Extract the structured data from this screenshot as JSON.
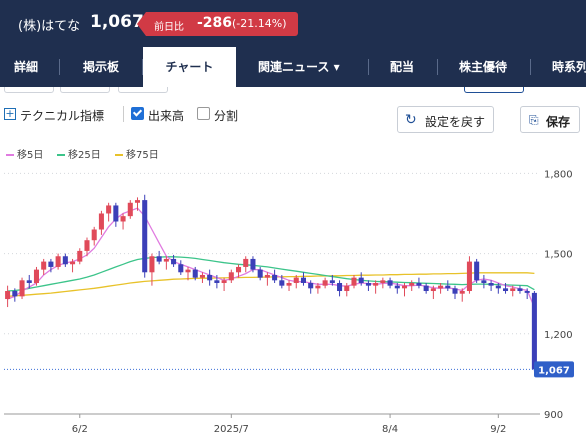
{
  "header": {
    "stock_name": "(株)はてな",
    "price": "1,067",
    "change_label": "前日比",
    "change_value": "-286",
    "change_pct": "(-21.14%)",
    "change_color": "#d13a45",
    "bg_color": "#1f2f4f"
  },
  "tabs": [
    "詳細",
    "掲示板",
    "チャート",
    "関連ニュース ▾",
    "配当",
    "株主優待",
    "時系列"
  ],
  "active_tab": "チャート",
  "toolbar": {
    "technical_label": "テクニカル指標",
    "volume_label": "出来高",
    "volume_checked": true,
    "split_label": "分割",
    "split_checked": false,
    "reset_label": "設定を戻す",
    "save_label": "保存",
    "reset_icon": "refresh-icon",
    "save_icon": "paperclip-icon"
  },
  "legend": [
    {
      "label": "移5日",
      "color": "#e07be0"
    },
    {
      "label": "移25日",
      "color": "#3cc48a"
    },
    {
      "label": "移75日",
      "color": "#e8c22a"
    }
  ],
  "chart_data": {
    "type": "candlestick",
    "title": "",
    "x_ticks": [
      "6/2",
      "2025/7",
      "8/4",
      "9/2"
    ],
    "y_ticks": [
      1800,
      1500,
      1200,
      900
    ],
    "y_tick_labels": [
      "1,800",
      "1,500",
      "1,200",
      "900"
    ],
    "ylim": [
      900,
      1850
    ],
    "current_price": 1067,
    "current_price_label": "1,067",
    "up_color": "#e04a5a",
    "down_color": "#3b3fb8",
    "candles": [
      [
        1330,
        1380,
        1300,
        1360
      ],
      [
        1360,
        1370,
        1320,
        1340
      ],
      [
        1340,
        1410,
        1330,
        1400
      ],
      [
        1400,
        1420,
        1370,
        1390
      ],
      [
        1390,
        1450,
        1380,
        1440
      ],
      [
        1440,
        1480,
        1420,
        1470
      ],
      [
        1470,
        1480,
        1430,
        1450
      ],
      [
        1450,
        1500,
        1440,
        1490
      ],
      [
        1490,
        1500,
        1450,
        1460
      ],
      [
        1460,
        1480,
        1430,
        1470
      ],
      [
        1470,
        1520,
        1460,
        1510
      ],
      [
        1510,
        1560,
        1490,
        1550
      ],
      [
        1550,
        1600,
        1530,
        1590
      ],
      [
        1590,
        1660,
        1570,
        1650
      ],
      [
        1650,
        1690,
        1620,
        1680
      ],
      [
        1680,
        1690,
        1600,
        1620
      ],
      [
        1620,
        1650,
        1590,
        1640
      ],
      [
        1640,
        1700,
        1630,
        1690
      ],
      [
        1690,
        1710,
        1660,
        1700
      ],
      [
        1700,
        1720,
        1410,
        1430
      ],
      [
        1430,
        1500,
        1380,
        1490
      ],
      [
        1490,
        1510,
        1460,
        1470
      ],
      [
        1470,
        1490,
        1440,
        1480
      ],
      [
        1480,
        1495,
        1450,
        1460
      ],
      [
        1460,
        1475,
        1420,
        1430
      ],
      [
        1430,
        1450,
        1400,
        1440
      ],
      [
        1440,
        1450,
        1400,
        1410
      ],
      [
        1410,
        1430,
        1390,
        1420
      ],
      [
        1420,
        1440,
        1380,
        1400
      ],
      [
        1400,
        1420,
        1370,
        1390
      ],
      [
        1390,
        1410,
        1360,
        1400
      ],
      [
        1400,
        1440,
        1390,
        1430
      ],
      [
        1430,
        1460,
        1410,
        1450
      ],
      [
        1450,
        1490,
        1430,
        1480
      ],
      [
        1480,
        1490,
        1430,
        1440
      ],
      [
        1440,
        1450,
        1400,
        1410
      ],
      [
        1410,
        1430,
        1380,
        1420
      ],
      [
        1420,
        1440,
        1390,
        1400
      ],
      [
        1400,
        1420,
        1370,
        1380
      ],
      [
        1380,
        1400,
        1360,
        1390
      ],
      [
        1390,
        1420,
        1370,
        1410
      ],
      [
        1410,
        1430,
        1380,
        1390
      ],
      [
        1390,
        1400,
        1350,
        1370
      ],
      [
        1370,
        1390,
        1350,
        1380
      ],
      [
        1380,
        1410,
        1370,
        1400
      ],
      [
        1400,
        1420,
        1380,
        1390
      ],
      [
        1390,
        1400,
        1340,
        1360
      ],
      [
        1360,
        1390,
        1340,
        1380
      ],
      [
        1380,
        1420,
        1370,
        1410
      ],
      [
        1410,
        1430,
        1380,
        1390
      ],
      [
        1390,
        1400,
        1360,
        1380
      ],
      [
        1380,
        1400,
        1350,
        1390
      ],
      [
        1390,
        1410,
        1370,
        1400
      ],
      [
        1400,
        1410,
        1370,
        1380
      ],
      [
        1380,
        1390,
        1350,
        1370
      ],
      [
        1370,
        1390,
        1340,
        1380
      ],
      [
        1380,
        1400,
        1360,
        1390
      ],
      [
        1390,
        1410,
        1370,
        1380
      ],
      [
        1380,
        1390,
        1350,
        1360
      ],
      [
        1360,
        1380,
        1330,
        1370
      ],
      [
        1370,
        1390,
        1350,
        1380
      ],
      [
        1380,
        1400,
        1360,
        1370
      ],
      [
        1370,
        1380,
        1330,
        1350
      ],
      [
        1350,
        1370,
        1320,
        1360
      ],
      [
        1360,
        1490,
        1350,
        1470
      ],
      [
        1470,
        1480,
        1390,
        1400
      ],
      [
        1400,
        1420,
        1370,
        1390
      ],
      [
        1390,
        1400,
        1360,
        1380
      ],
      [
        1380,
        1390,
        1350,
        1370
      ],
      [
        1370,
        1390,
        1350,
        1360
      ],
      [
        1360,
        1380,
        1340,
        1370
      ],
      [
        1370,
        1380,
        1350,
        1360
      ],
      [
        1360,
        1370,
        1330,
        1353
      ],
      [
        1353,
        1360,
        1060,
        1067
      ]
    ],
    "ma5": [
      1330,
      1340,
      1360,
      1375,
      1390,
      1420,
      1440,
      1455,
      1465,
      1470,
      1480,
      1495,
      1520,
      1560,
      1600,
      1630,
      1650,
      1660,
      1670,
      1640,
      1590,
      1540,
      1490,
      1470,
      1460,
      1450,
      1440,
      1430,
      1420,
      1410,
      1400,
      1405,
      1415,
      1425,
      1440,
      1440,
      1430,
      1420,
      1410,
      1400,
      1395,
      1395,
      1390,
      1385,
      1385,
      1385,
      1380,
      1378,
      1385,
      1390,
      1388,
      1385,
      1388,
      1390,
      1385,
      1380,
      1380,
      1382,
      1378,
      1372,
      1370,
      1372,
      1368,
      1362,
      1385,
      1400,
      1405,
      1400,
      1390,
      1380,
      1375,
      1368,
      1362,
      1300
    ],
    "ma25": [
      1360,
      1362,
      1365,
      1370,
      1375,
      1380,
      1385,
      1390,
      1395,
      1400,
      1405,
      1412,
      1420,
      1430,
      1440,
      1450,
      1460,
      1470,
      1478,
      1482,
      1485,
      1487,
      1488,
      1488,
      1487,
      1485,
      1482,
      1478,
      1474,
      1470,
      1466,
      1463,
      1460,
      1458,
      1456,
      1453,
      1450,
      1446,
      1442,
      1438,
      1434,
      1430,
      1426,
      1422,
      1418,
      1414,
      1410,
      1406,
      1403,
      1400,
      1398,
      1396,
      1395,
      1394,
      1393,
      1392,
      1391,
      1390,
      1389,
      1388,
      1387,
      1386,
      1385,
      1384,
      1385,
      1386,
      1386,
      1385,
      1384,
      1383,
      1382,
      1381,
      1380,
      1365
    ],
    "ma75": [
      1340,
      1342,
      1344,
      1346,
      1348,
      1350,
      1352,
      1355,
      1358,
      1361,
      1364,
      1367,
      1370,
      1374,
      1378,
      1382,
      1386,
      1390,
      1393,
      1396,
      1398,
      1400,
      1402,
      1404,
      1405,
      1406,
      1407,
      1408,
      1408,
      1409,
      1409,
      1410,
      1410,
      1411,
      1411,
      1412,
      1412,
      1413,
      1413,
      1414,
      1414,
      1415,
      1415,
      1416,
      1416,
      1417,
      1417,
      1418,
      1418,
      1419,
      1419,
      1420,
      1420,
      1421,
      1421,
      1422,
      1422,
      1423,
      1423,
      1424,
      1424,
      1425,
      1425,
      1426,
      1427,
      1428,
      1428,
      1428,
      1428,
      1428,
      1428,
      1428,
      1428,
      1426
    ]
  }
}
